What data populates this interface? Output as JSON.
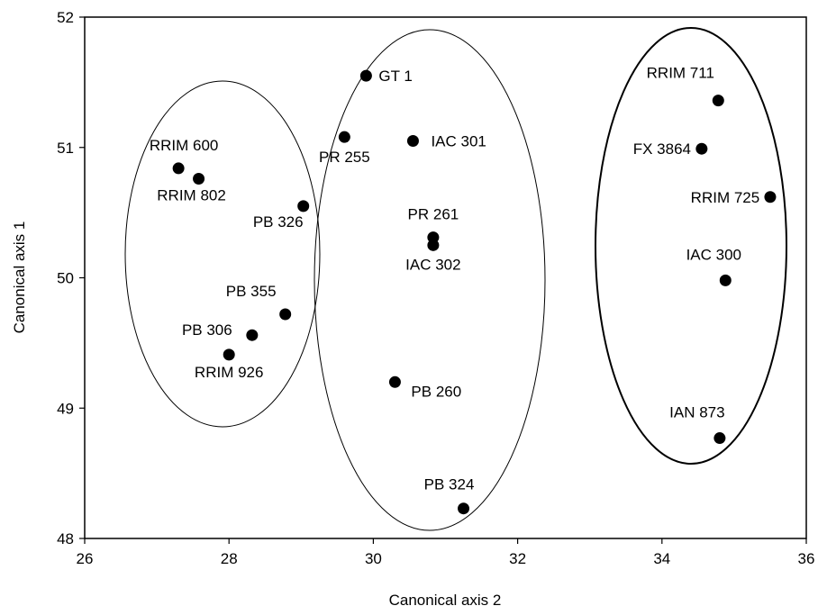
{
  "chart_data": {
    "type": "scatter",
    "xlabel": "Canonical axis 2",
    "ylabel": "Canonical axis 1",
    "xlim": [
      26,
      36
    ],
    "ylim": [
      48,
      52
    ],
    "xticks": [
      26,
      28,
      30,
      32,
      34,
      36
    ],
    "yticks": [
      48,
      49,
      50,
      51,
      52
    ],
    "grid": false,
    "points": [
      {
        "label": "GT 1",
        "x": 29.9,
        "y": 51.55
      },
      {
        "label": "PR 255",
        "x": 29.6,
        "y": 51.08
      },
      {
        "label": "IAC 301",
        "x": 30.55,
        "y": 51.05
      },
      {
        "label": "RRIM 600",
        "x": 27.3,
        "y": 50.84
      },
      {
        "label": "RRIM 802",
        "x": 27.58,
        "y": 50.76
      },
      {
        "label": "PB 326",
        "x": 29.03,
        "y": 50.55
      },
      {
        "label": "PR 261",
        "x": 30.83,
        "y": 50.31
      },
      {
        "label": "IAC 302",
        "x": 30.83,
        "y": 50.25
      },
      {
        "label": "PB 355",
        "x": 28.78,
        "y": 49.72
      },
      {
        "label": "PB 306",
        "x": 28.32,
        "y": 49.56
      },
      {
        "label": "RRIM 926",
        "x": 28.0,
        "y": 49.41
      },
      {
        "label": "PB 260",
        "x": 30.3,
        "y": 49.2
      },
      {
        "label": "PB 324",
        "x": 31.25,
        "y": 48.23
      },
      {
        "label": "RRIM 711",
        "x": 34.78,
        "y": 51.36
      },
      {
        "label": "FX 3864",
        "x": 34.55,
        "y": 50.99
      },
      {
        "label": "RRIM 725",
        "x": 35.5,
        "y": 50.62
      },
      {
        "label": "IAC 300",
        "x": 34.88,
        "y": 49.98
      },
      {
        "label": "IAN 873",
        "x": 34.8,
        "y": 48.77
      }
    ],
    "groups": [
      {
        "members": [
          "RRIM 600",
          "RRIM 802",
          "PB 326",
          "PB 355",
          "PB 306",
          "RRIM 926"
        ],
        "stroke": "#000000"
      },
      {
        "members": [
          "GT 1",
          "PR 255",
          "IAC 301",
          "PR 261",
          "IAC 302",
          "PB 260",
          "PB 324"
        ],
        "stroke": "#000000"
      },
      {
        "members": [
          "RRIM 711",
          "FX 3864",
          "RRIM 725",
          "IAC 300",
          "IAN 873"
        ],
        "stroke": "#000000"
      }
    ],
    "marker_color": "#000000"
  }
}
